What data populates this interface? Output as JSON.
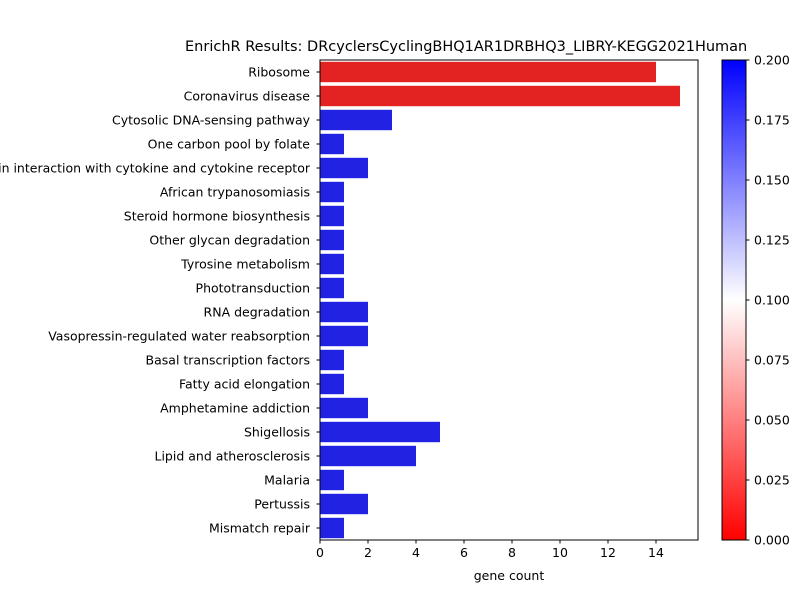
{
  "chart_data": {
    "type": "bar",
    "orientation": "horizontal",
    "title": "EnrichR Results: DRcyclersCyclingBHQ1AR1DRBHQ3_LIBRY-KEGG2021Human",
    "xlabel": "gene count",
    "ylabel": "",
    "xlim": [
      0,
      15.75
    ],
    "x_ticks": [
      "0",
      "2",
      "4",
      "6",
      "8",
      "10",
      "12",
      "14"
    ],
    "categories": [
      "Ribosome",
      "Coronavirus disease",
      "Cytosolic DNA-sensing pathway",
      "One carbon pool by folate",
      "Viral protein interaction with cytokine and cytokine receptor",
      "African trypanosomiasis",
      "Steroid hormone biosynthesis",
      "Other glycan degradation",
      "Tyrosine metabolism",
      "Phototransduction",
      "RNA degradation",
      "Vasopressin-regulated water reabsorption",
      "Basal transcription factors",
      "Fatty acid elongation",
      "Amphetamine addiction",
      "Shigellosis",
      "Lipid and atherosclerosis",
      "Malaria",
      "Pertussis",
      "Mismatch repair"
    ],
    "values": [
      14,
      15,
      3,
      1,
      2,
      1,
      1,
      1,
      1,
      1,
      2,
      2,
      1,
      1,
      2,
      5,
      4,
      1,
      2,
      1
    ],
    "adjusted_p_color_values": [
      0.0,
      0.0,
      0.2,
      0.2,
      0.2,
      0.2,
      0.2,
      0.2,
      0.2,
      0.2,
      0.2,
      0.2,
      0.2,
      0.2,
      0.2,
      0.2,
      0.2,
      0.2,
      0.2,
      0.2
    ],
    "colorbar": {
      "range": [
        0.0,
        0.2
      ],
      "ticks": [
        "0.000",
        "0.025",
        "0.050",
        "0.075",
        "0.100",
        "0.125",
        "0.150",
        "0.175",
        "0.200"
      ],
      "colormap": [
        "#ff0000",
        "#ffffff",
        "#0000ff"
      ]
    },
    "bar_colors": {
      "low": "#e32222",
      "high": "#2222e3"
    },
    "grid": false,
    "legend": "none"
  }
}
